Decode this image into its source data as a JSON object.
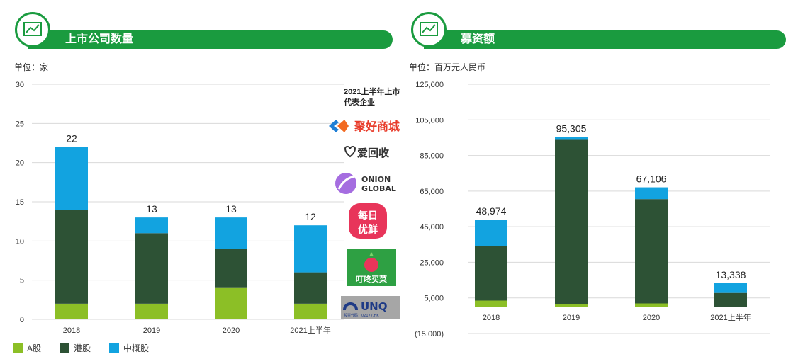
{
  "colors": {
    "a_share": "#8cbf26",
    "hk_share": "#2d5235",
    "us_share": "#12a3e0",
    "banner": "#1a9b3f"
  },
  "left_panel": {
    "title": "上市公司数量",
    "unit": "单位：家",
    "icon": "line-chart-icon"
  },
  "right_panel": {
    "title": "募资额",
    "unit": "单位：百万元人民币",
    "icon": "line-chart-icon"
  },
  "logos": {
    "title": "2021上半年上市代表企业",
    "items": [
      {
        "name": "聚好商城",
        "icon": "juhao-logo-icon"
      },
      {
        "name": "爱回收",
        "icon": "aihuishou-logo-icon"
      },
      {
        "name": "ONION GLOBAL",
        "icon": "onion-logo-icon"
      },
      {
        "name": "每日优鲜",
        "icon": "missfresh-logo-icon"
      },
      {
        "name": "叮咚买菜",
        "icon": "dingdong-logo-icon"
      },
      {
        "name": "UNQ",
        "icon": "unq-logo-icon"
      }
    ]
  },
  "chart_data": [
    {
      "type": "bar",
      "stacked": true,
      "categories": [
        "2018",
        "2019",
        "2020",
        "2021上半年"
      ],
      "series": [
        {
          "name": "A股",
          "values": [
            2,
            2,
            4,
            2
          ]
        },
        {
          "name": "港股",
          "values": [
            12,
            9,
            5,
            4
          ]
        },
        {
          "name": "中概股",
          "values": [
            8,
            2,
            4,
            6
          ]
        }
      ],
      "totals": [
        "22",
        "13",
        "13",
        "12"
      ],
      "ylim": [
        0,
        30
      ],
      "yticks": [
        "0",
        "5",
        "10",
        "15",
        "20",
        "25",
        "30"
      ],
      "grid": true,
      "legend_position": "bottom-left"
    },
    {
      "type": "bar",
      "stacked": true,
      "categories": [
        "2018",
        "2019",
        "2020",
        "2021上半年"
      ],
      "series": [
        {
          "name": "A股",
          "values": [
            3500,
            1300,
            1900,
            0
          ]
        },
        {
          "name": "港股",
          "values": [
            30500,
            92500,
            58600,
            7800
          ]
        },
        {
          "name": "中概股",
          "values": [
            14974,
            1505,
            6606,
            5538
          ]
        }
      ],
      "totals": [
        "48,974",
        "95,305",
        "67,106",
        "13,338"
      ],
      "ylim": [
        -15000,
        125000
      ],
      "yticks": [
        "(15,000)",
        "5,000",
        "25,000",
        "45,000",
        "65,000",
        "85,000",
        "105,000",
        "125,000"
      ],
      "grid": true
    }
  ]
}
